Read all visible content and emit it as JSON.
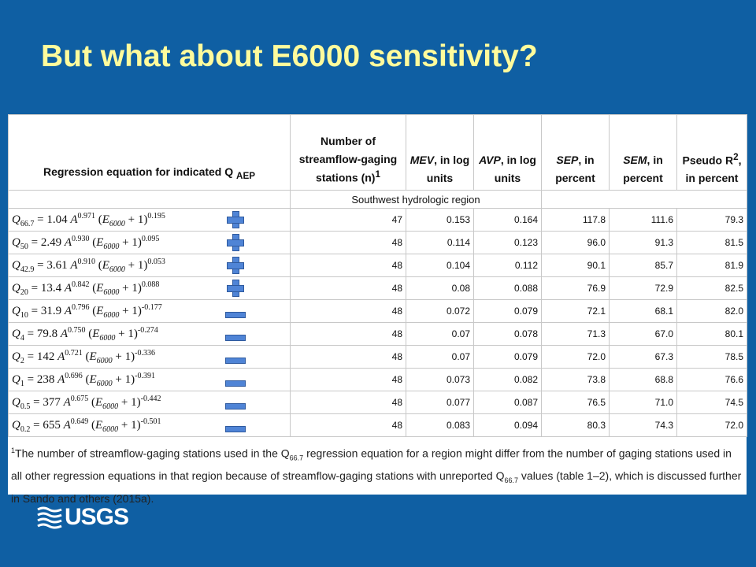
{
  "title": "But what about E6000 sensitivity?",
  "table": {
    "headers": {
      "equation": "Regression equation for indicated Q",
      "equation_sub": "AEP",
      "stations_line1": "Number of",
      "stations_line2": "streamflow-gaging",
      "stations_line3": "stations (n)",
      "stations_sup": "1",
      "mev_name": "MEV",
      "mev_rest": ", in log",
      "mev_line2": "units",
      "avp_name": "AVP",
      "avp_rest": ", in log",
      "avp_line2": "units",
      "sep_name": "SEP",
      "sep_rest": ", in",
      "sep_line2": "percent",
      "sem_name": "SEM",
      "sem_rest": ", in",
      "sem_line2": "percent",
      "r2_name": "Pseudo R",
      "r2_sup": "2",
      "r2_rest": ",",
      "r2_line2": "in percent"
    },
    "region": "Southwest hydrologic region",
    "rows": [
      {
        "q": "66.7",
        "coef": "1.04",
        "a_exp": "0.971",
        "e_exp": "0.195",
        "sign": "plus",
        "n": "47",
        "mev": "0.153",
        "avp": "0.164",
        "sep": "117.8",
        "sem": "111.6",
        "r2": "79.3"
      },
      {
        "q": "50",
        "coef": "2.49",
        "a_exp": "0.930",
        "e_exp": "0.095",
        "sign": "plus",
        "n": "48",
        "mev": "0.114",
        "avp": "0.123",
        "sep": "96.0",
        "sem": "91.3",
        "r2": "81.5"
      },
      {
        "q": "42.9",
        "coef": "3.61",
        "a_exp": "0.910",
        "e_exp": "0.053",
        "sign": "plus",
        "n": "48",
        "mev": "0.104",
        "avp": "0.112",
        "sep": "90.1",
        "sem": "85.7",
        "r2": "81.9"
      },
      {
        "q": "20",
        "coef": "13.4",
        "a_exp": "0.842",
        "e_exp": "0.088",
        "sign": "plus",
        "n": "48",
        "mev": "0.08",
        "avp": "0.088",
        "sep": "76.9",
        "sem": "72.9",
        "r2": "82.5"
      },
      {
        "q": "10",
        "coef": "31.9",
        "a_exp": "0.796",
        "e_exp": "-0.177",
        "sign": "minus",
        "n": "48",
        "mev": "0.072",
        "avp": "0.079",
        "sep": "72.1",
        "sem": "68.1",
        "r2": "82.0"
      },
      {
        "q": "4",
        "coef": "79.8",
        "a_exp": "0.750",
        "e_exp": "-0.274",
        "sign": "minus",
        "n": "48",
        "mev": "0.07",
        "avp": "0.078",
        "sep": "71.3",
        "sem": "67.0",
        "r2": "80.1"
      },
      {
        "q": "2",
        "coef": "142",
        "a_exp": "0.721",
        "e_exp": "-0.336",
        "sign": "minus",
        "n": "48",
        "mev": "0.07",
        "avp": "0.079",
        "sep": "72.0",
        "sem": "67.3",
        "r2": "78.5"
      },
      {
        "q": "1",
        "coef": "238",
        "a_exp": "0.696",
        "e_exp": "-0.391",
        "sign": "minus",
        "n": "48",
        "mev": "0.073",
        "avp": "0.082",
        "sep": "73.8",
        "sem": "68.8",
        "r2": "76.6"
      },
      {
        "q": "0.5",
        "coef": "377",
        "a_exp": "0.675",
        "e_exp": "-0.442",
        "sign": "minus",
        "n": "48",
        "mev": "0.077",
        "avp": "0.087",
        "sep": "76.5",
        "sem": "71.0",
        "r2": "74.5"
      },
      {
        "q": "0.2",
        "coef": "655",
        "a_exp": "0.649",
        "e_exp": "-0.501",
        "sign": "minus",
        "n": "48",
        "mev": "0.083",
        "avp": "0.094",
        "sep": "80.3",
        "sem": "74.3",
        "r2": "72.0"
      }
    ],
    "eq_symbols": {
      "q": "Q",
      "eq": "=",
      "a": "A",
      "e": "E",
      "e_sub": "6000",
      "plus_one": "+ 1)"
    },
    "footnote": {
      "marker": "1",
      "text_1": "The number of streamflow-gaging stations used in the Q",
      "sub_1": "66.7",
      "text_2": " regression equation for a region might differ from the number of gaging stations used in all other regression equations in that region because of streamflow-gaging stations with unreported Q",
      "sub_2": "66.7",
      "text_3": " values (table 1–2), which is discussed further in Sando and others (2015a)."
    }
  },
  "logo": {
    "text": "USGS"
  },
  "colors": {
    "background": "#0f5fa3",
    "title": "#fffb9c",
    "sign": "#4f84d6"
  }
}
